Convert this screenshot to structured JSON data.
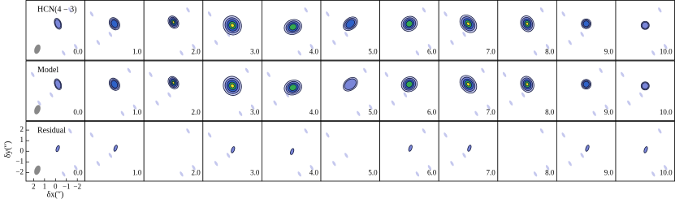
{
  "figure": {
    "rows": [
      "HCN(4 − 3)",
      "Model",
      "Residual"
    ],
    "channels": [
      "0.0",
      "1.0",
      "2.0",
      "3.0",
      "4.0",
      "5.0",
      "6.0",
      "7.0",
      "8.0",
      "9.0",
      "10.0"
    ],
    "ylabel": "δy(′′)",
    "xlabel": "δx(′′)",
    "xlim": [
      2.7,
      -2.7
    ],
    "ylim": [
      -2.85,
      2.85
    ],
    "xticks": [
      2,
      1,
      0,
      {
        "value": -1,
        "label": "−1"
      },
      {
        "value": -2,
        "label": "−2"
      }
    ],
    "yticks": [
      2,
      1,
      0,
      {
        "value": -1,
        "label": "−1"
      },
      {
        "value": -2,
        "label": "−2"
      }
    ]
  }
}
